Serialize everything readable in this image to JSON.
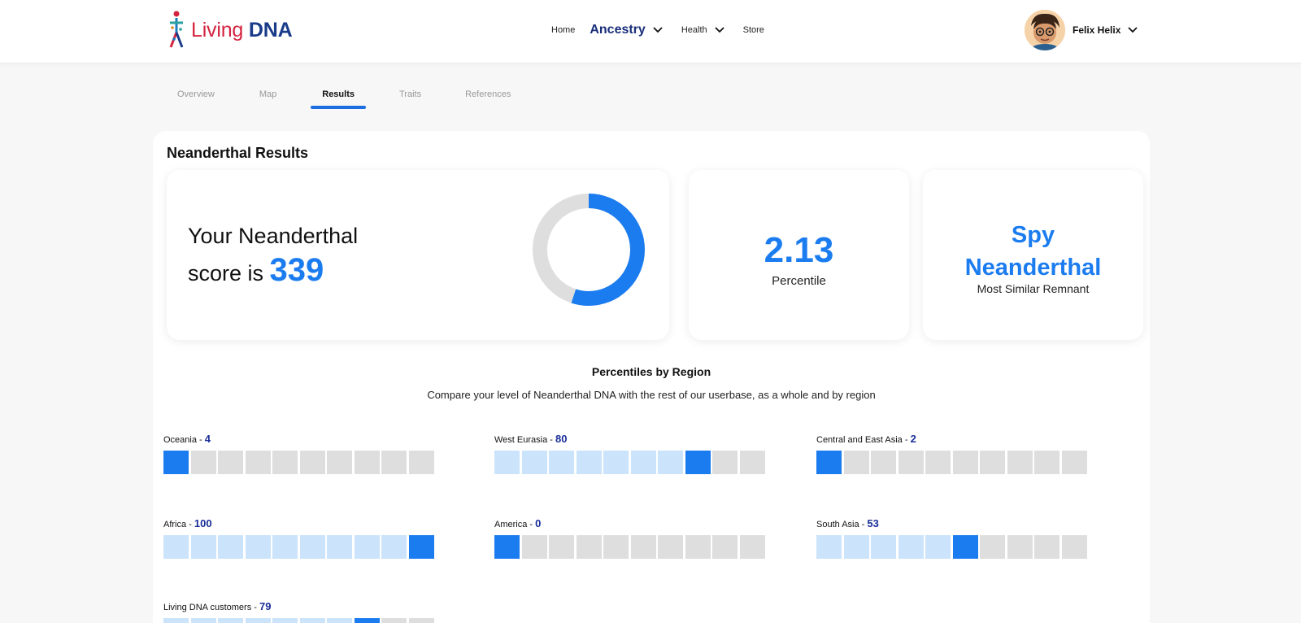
{
  "header": {
    "logo": {
      "living": "Living",
      "dna": "DNA"
    },
    "nav": {
      "home": "Home",
      "ancestry": "Ancestry",
      "health": "Health",
      "store": "Store"
    },
    "user": {
      "name": "Felix Helix"
    }
  },
  "tabs": [
    {
      "label": "Overview",
      "active": false
    },
    {
      "label": "Map",
      "active": false
    },
    {
      "label": "Results",
      "active": true
    },
    {
      "label": "Traits",
      "active": false
    },
    {
      "label": "References",
      "active": false
    }
  ],
  "main": {
    "title": "Neanderthal Results",
    "score_card": {
      "line1": "Your Neanderthal",
      "line2_prefix": "score is",
      "score": "339"
    },
    "donut_fraction": 0.55,
    "percentile_card": {
      "value": "2.13",
      "label": "Percentile"
    },
    "remnant_card": {
      "value_line1": "Spy",
      "value_line2": "Neanderthal",
      "label": "Most Similar Remnant"
    },
    "section_title": "Percentiles by Region",
    "section_subtitle": "Compare your level of Neanderthal DNA with the rest of our userbase, as a whole and by region"
  },
  "regions": [
    {
      "name": "Oceania",
      "value": "4",
      "position": 1
    },
    {
      "name": "West Eurasia",
      "value": "80",
      "position": 8
    },
    {
      "name": "Central and East Asia",
      "value": "2",
      "position": 1
    },
    {
      "name": "Africa",
      "value": "100",
      "position": 10
    },
    {
      "name": "America",
      "value": "0",
      "position": 1
    },
    {
      "name": "South Asia",
      "value": "53",
      "position": 6
    },
    {
      "name": "Living DNA customers",
      "value": "79",
      "position": 8
    }
  ],
  "colors": {
    "accent": "#1b7cf0",
    "accent_light": "#cbe3fb",
    "empty": "#dedede",
    "dark_blue": "#1a2f7a",
    "logo_red": "#d4233f"
  }
}
